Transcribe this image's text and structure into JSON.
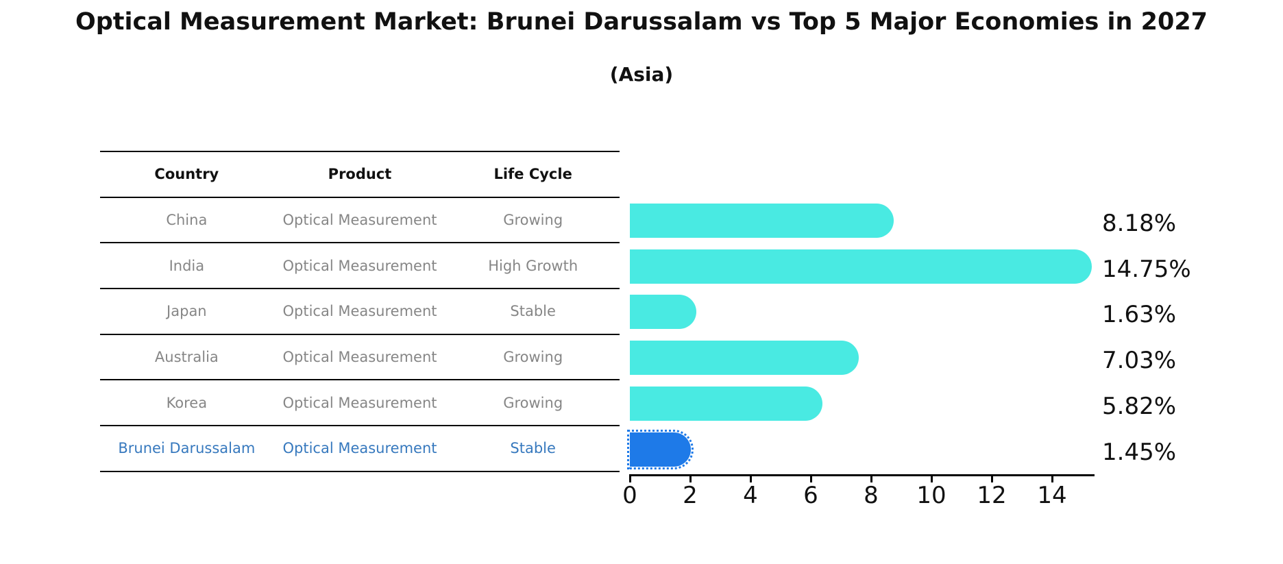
{
  "title": "Optical Measurement Market: Brunei Darussalam vs Top 5 Major Economies in 2027",
  "subtitle": "(Asia)",
  "table": {
    "headers": [
      "Country",
      "Product",
      "Life Cycle"
    ],
    "rows": [
      {
        "country": "China",
        "product": "Optical Measurement",
        "life_cycle": "Growing",
        "highlight": false
      },
      {
        "country": "India",
        "product": "Optical Measurement",
        "life_cycle": "High Growth",
        "highlight": false
      },
      {
        "country": "Japan",
        "product": "Optical Measurement",
        "life_cycle": "Stable",
        "highlight": false
      },
      {
        "country": "Australia",
        "product": "Optical Measurement",
        "life_cycle": "Growing",
        "highlight": false
      },
      {
        "country": "Korea",
        "product": "Optical Measurement",
        "life_cycle": "Growing",
        "highlight": false
      },
      {
        "country": "Brunei Darussalam",
        "product": "Optical Measurement",
        "life_cycle": "Stable",
        "highlight": true
      }
    ]
  },
  "chart_data": {
    "type": "bar",
    "orientation": "horizontal",
    "title": "Optical Measurement Market: Brunei Darussalam vs Top 5 Major Economies in 2027 (Asia)",
    "categories": [
      "China",
      "India",
      "Japan",
      "Australia",
      "Korea",
      "Brunei Darussalam"
    ],
    "values": [
      8.18,
      14.75,
      1.63,
      7.03,
      5.82,
      1.45
    ],
    "value_labels": [
      "8.18%",
      "14.75%",
      "1.63%",
      "7.03%",
      "5.82%",
      "1.45%"
    ],
    "x_ticks": [
      "0",
      "2",
      "4",
      "6",
      "8",
      "10",
      "12",
      "14"
    ],
    "x_tick_values": [
      0,
      2,
      4,
      6,
      8,
      10,
      12,
      14
    ],
    "xlim": [
      0,
      15.4
    ],
    "grid": false,
    "legend": "none",
    "highlight_category": "Brunei Darussalam",
    "colors": {
      "bar_default": "#49EAE2",
      "bar_highlight": "#1E7AE8",
      "highlight_text": "#3779BE",
      "table_text": "#868686",
      "header_text": "#111111",
      "label_text": "#111111",
      "axis": "#000000"
    }
  }
}
